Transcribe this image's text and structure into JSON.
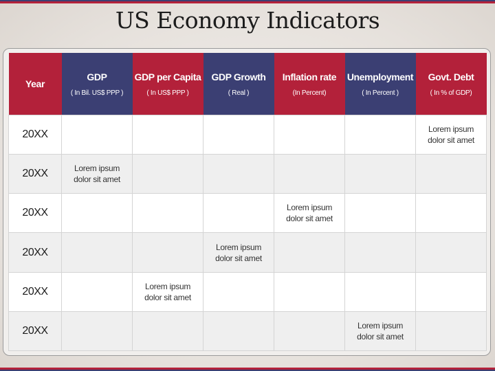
{
  "title": "US Economy Indicators",
  "colors": {
    "red": "#b3213a",
    "navy": "#3b3f73"
  },
  "headers": [
    {
      "label": "Year",
      "sub": ""
    },
    {
      "label": "GDP",
      "sub": "( In Bil. US$ PPP )"
    },
    {
      "label": "GDP per Capita",
      "sub": "( In US$ PPP )"
    },
    {
      "label": "GDP Growth",
      "sub": "( Real )"
    },
    {
      "label": "Inflation rate",
      "sub": "(In Percent)"
    },
    {
      "label": "Unemployment",
      "sub": "( In Percent )"
    },
    {
      "label": "Govt. Debt",
      "sub": "( In % of GDP)"
    }
  ],
  "rows": [
    {
      "year": "20XX",
      "cells": [
        "",
        "",
        "",
        "",
        "",
        "Lorem ipsum dolor sit amet"
      ]
    },
    {
      "year": "20XX",
      "cells": [
        "Lorem ipsum dolor sit amet",
        "",
        "",
        "",
        "",
        ""
      ]
    },
    {
      "year": "20XX",
      "cells": [
        "",
        "",
        "",
        "Lorem ipsum dolor sit amet",
        "",
        ""
      ]
    },
    {
      "year": "20XX",
      "cells": [
        "",
        "",
        "Lorem ipsum dolor sit amet",
        "",
        "",
        ""
      ]
    },
    {
      "year": "20XX",
      "cells": [
        "",
        "Lorem ipsum dolor sit amet",
        "",
        "",
        "",
        ""
      ]
    },
    {
      "year": "20XX",
      "cells": [
        "",
        "",
        "",
        "",
        "Lorem ipsum dolor sit amet",
        ""
      ]
    }
  ]
}
